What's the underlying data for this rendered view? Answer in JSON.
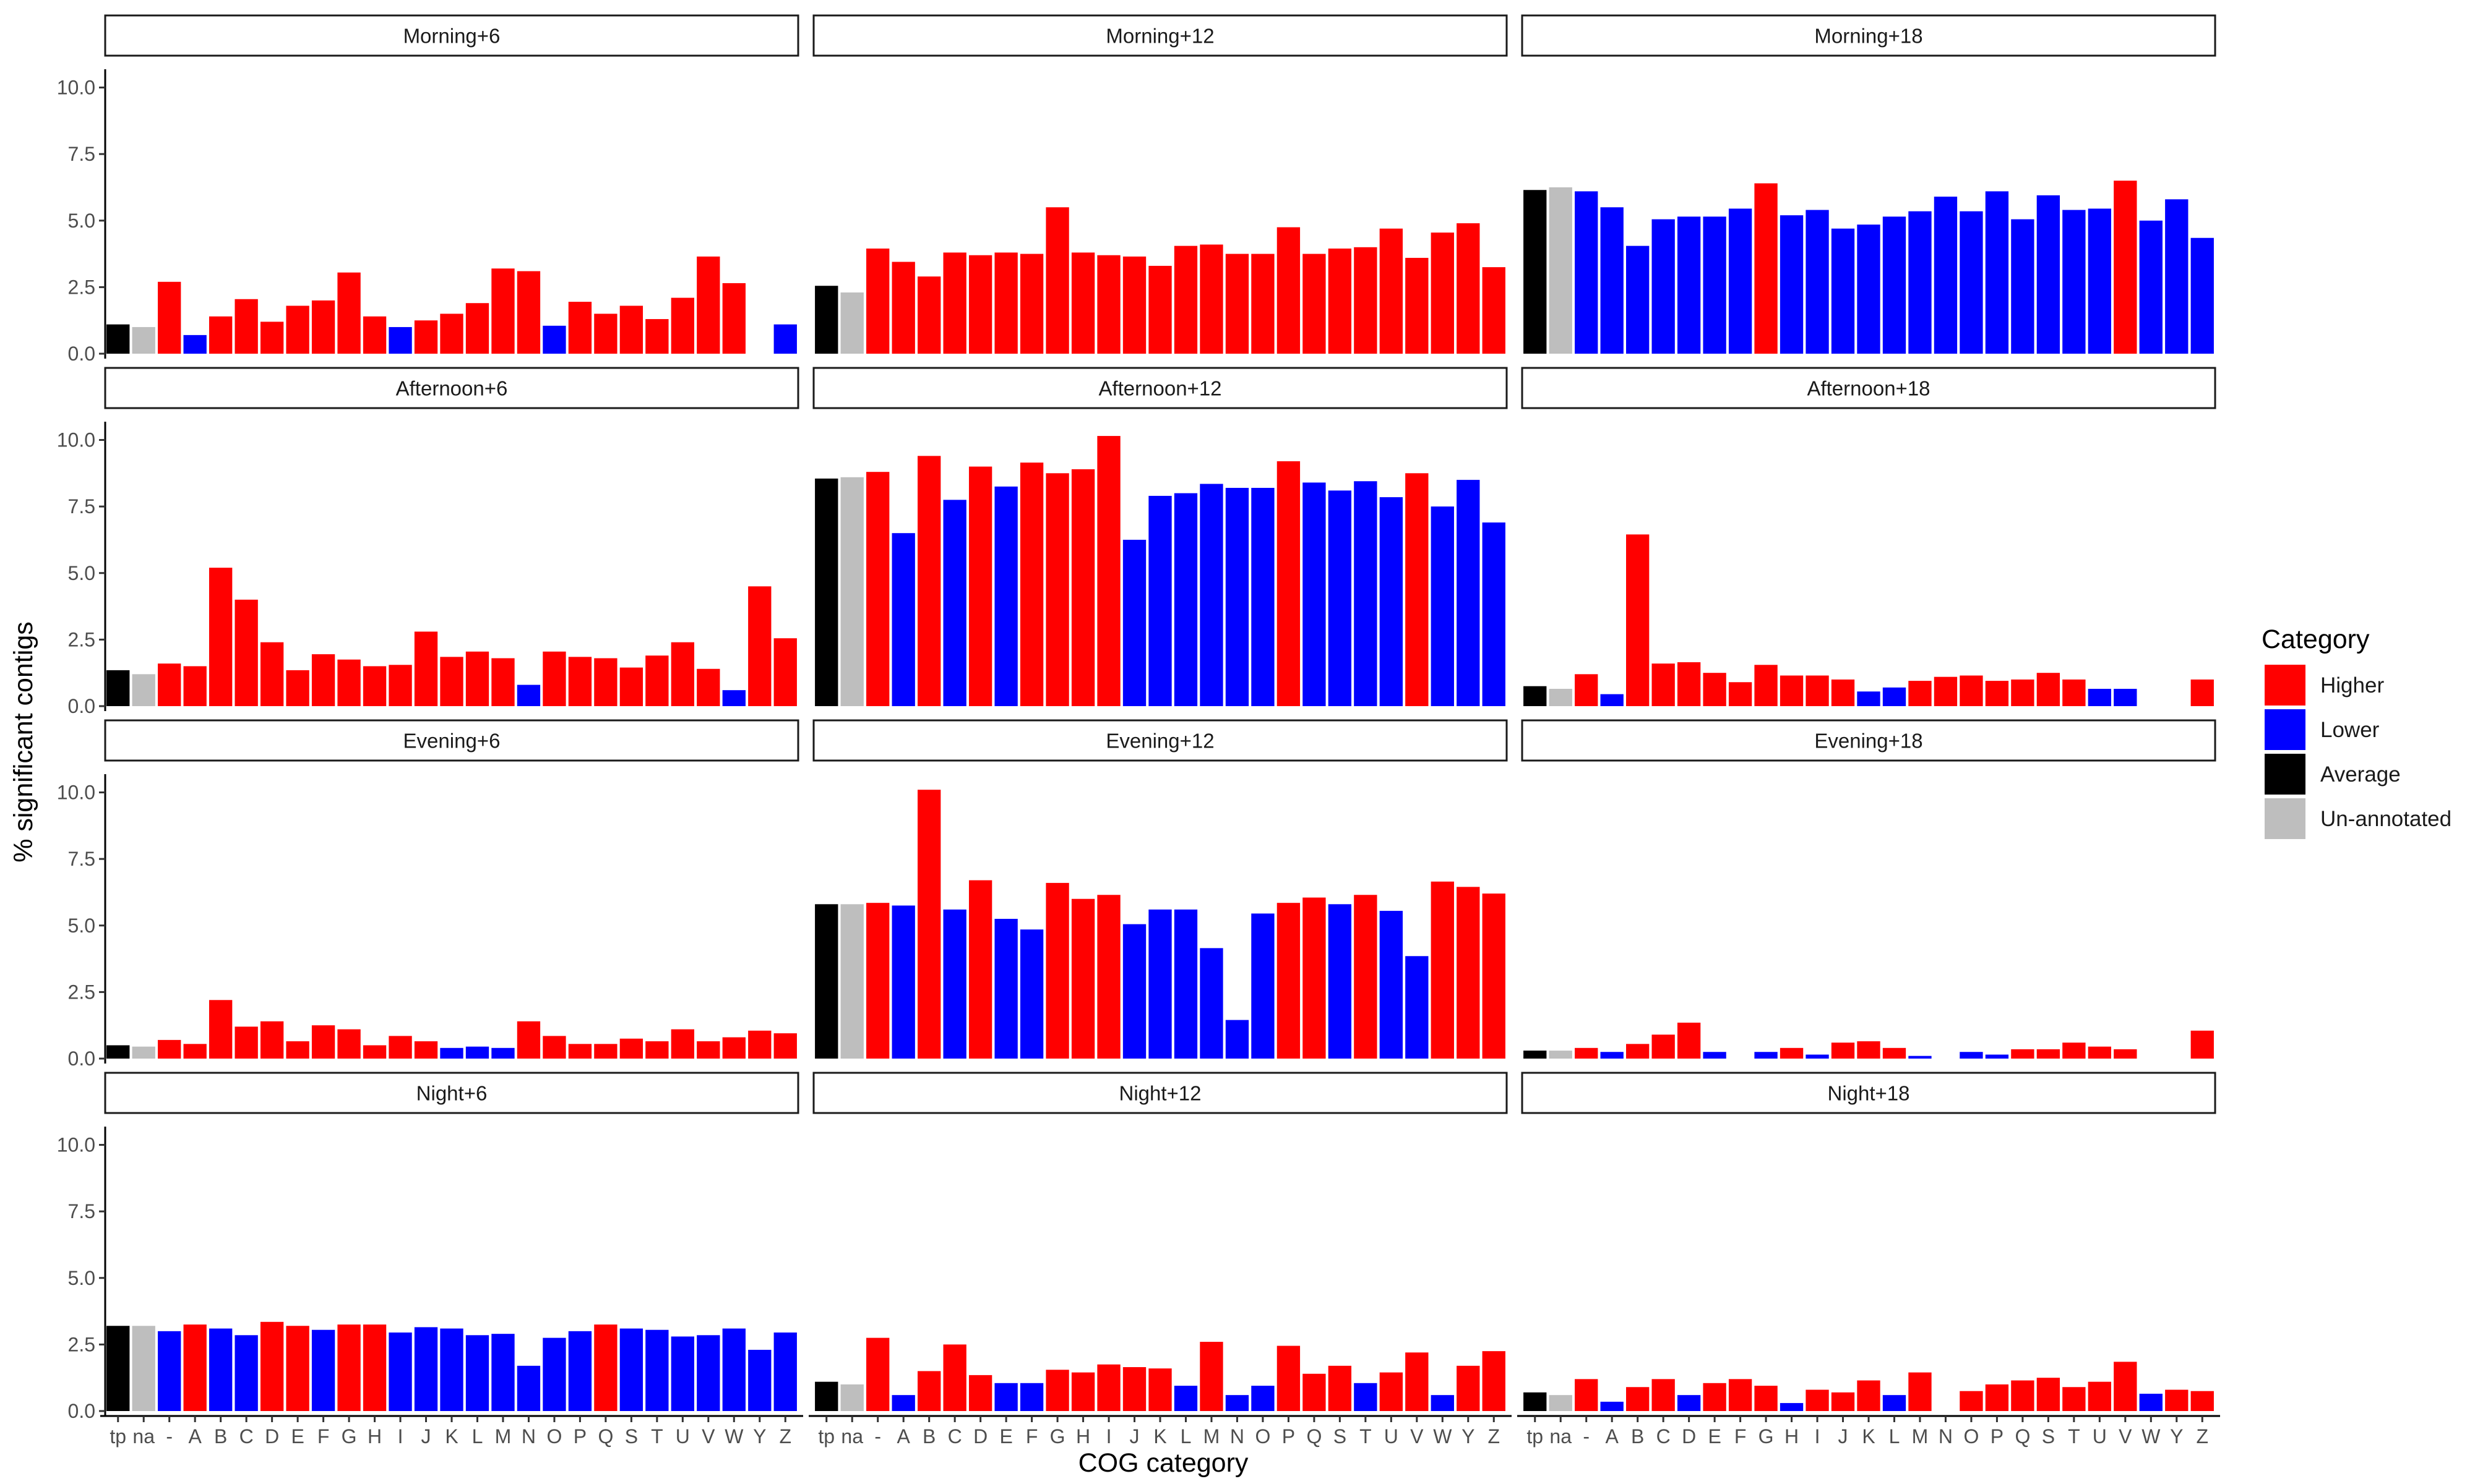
{
  "chart_data": {
    "type": "bar",
    "xlabel": "COG category",
    "ylabel": "% significant contigs",
    "ylim": [
      0,
      10.5
    ],
    "y_ticks": [
      0,
      2.5,
      5,
      7.5,
      10
    ],
    "y_tick_labels": [
      "0.0",
      "2.5",
      "5.0",
      "7.5",
      "10.0"
    ],
    "categories": [
      "tp",
      "na",
      "-",
      "A",
      "B",
      "C",
      "D",
      "E",
      "F",
      "G",
      "H",
      "I",
      "J",
      "K",
      "L",
      "M",
      "N",
      "O",
      "P",
      "Q",
      "S",
      "T",
      "U",
      "V",
      "W",
      "Y",
      "Z"
    ],
    "legend": {
      "title": "Category",
      "position": "right",
      "entries": [
        {
          "label": "Higher",
          "color": "#FF0000"
        },
        {
          "label": "Lower",
          "color": "#0000FF"
        },
        {
          "label": "Average",
          "color": "#000000"
        },
        {
          "label": "Un-annotated",
          "color": "#BEBEBE"
        }
      ]
    },
    "panels": [
      {
        "title": "Morning+6",
        "values": [
          1.1,
          1.0,
          2.7,
          0.7,
          1.4,
          2.05,
          1.2,
          1.8,
          2.0,
          3.05,
          1.4,
          1.0,
          1.25,
          1.5,
          1.9,
          3.2,
          3.1,
          1.05,
          1.95,
          1.5,
          1.8,
          1.3,
          2.1,
          3.65,
          2.65,
          null,
          1.1
        ],
        "groups": [
          "A",
          "U",
          "H",
          "L",
          "H",
          "H",
          "H",
          "H",
          "H",
          "H",
          "H",
          "L",
          "H",
          "H",
          "H",
          "H",
          "H",
          "L",
          "H",
          "H",
          "H",
          "H",
          "H",
          "H",
          "H",
          null,
          "L"
        ]
      },
      {
        "title": "Morning+12",
        "values": [
          2.55,
          2.3,
          3.95,
          3.45,
          2.9,
          3.8,
          3.7,
          3.8,
          3.75,
          5.5,
          3.8,
          3.7,
          3.65,
          3.3,
          4.05,
          4.1,
          3.75,
          3.75,
          4.75,
          3.75,
          3.95,
          4.0,
          4.7,
          3.6,
          4.55,
          4.9,
          3.25
        ],
        "groups": [
          "A",
          "U",
          "H",
          "H",
          "H",
          "H",
          "H",
          "H",
          "H",
          "H",
          "H",
          "H",
          "H",
          "H",
          "H",
          "H",
          "H",
          "H",
          "H",
          "H",
          "H",
          "H",
          "H",
          "H",
          "H",
          "H",
          "H"
        ]
      },
      {
        "title": "Morning+18",
        "values": [
          6.15,
          6.25,
          6.1,
          5.5,
          4.05,
          5.05,
          5.15,
          5.15,
          5.45,
          6.4,
          5.2,
          5.4,
          4.7,
          4.85,
          5.15,
          5.35,
          5.9,
          5.35,
          6.1,
          5.05,
          5.95,
          5.4,
          5.45,
          6.5,
          5.0,
          5.8,
          4.35
        ],
        "groups": [
          "A",
          "U",
          "L",
          "L",
          "L",
          "L",
          "L",
          "L",
          "L",
          "H",
          "L",
          "L",
          "L",
          "L",
          "L",
          "L",
          "L",
          "L",
          "L",
          "L",
          "L",
          "L",
          "L",
          "H",
          "L",
          "L",
          "L"
        ]
      },
      {
        "title": "Afternoon+6",
        "values": [
          1.35,
          1.2,
          1.6,
          1.5,
          5.2,
          4.0,
          2.4,
          1.35,
          1.95,
          1.75,
          1.5,
          1.55,
          2.8,
          1.85,
          2.05,
          1.8,
          0.8,
          2.05,
          1.85,
          1.8,
          1.45,
          1.9,
          2.4,
          1.4,
          0.6,
          4.5,
          2.55
        ],
        "groups": [
          "A",
          "U",
          "H",
          "H",
          "H",
          "H",
          "H",
          "H",
          "H",
          "H",
          "H",
          "H",
          "H",
          "H",
          "H",
          "H",
          "L",
          "H",
          "H",
          "H",
          "H",
          "H",
          "H",
          "H",
          "L",
          "H",
          "H"
        ]
      },
      {
        "title": "Afternoon+12",
        "values": [
          8.55,
          8.6,
          8.8,
          6.5,
          9.4,
          7.75,
          9.0,
          8.25,
          9.15,
          8.75,
          8.9,
          10.15,
          6.25,
          7.9,
          8.0,
          8.35,
          8.2,
          8.2,
          9.2,
          8.4,
          8.1,
          8.45,
          7.85,
          8.75,
          7.5,
          8.5,
          6.9
        ],
        "groups": [
          "A",
          "U",
          "H",
          "L",
          "H",
          "L",
          "H",
          "L",
          "H",
          "H",
          "H",
          "H",
          "L",
          "L",
          "L",
          "L",
          "L",
          "L",
          "H",
          "L",
          "L",
          "L",
          "L",
          "H",
          "L",
          "L",
          "L"
        ]
      },
      {
        "title": "Afternoon+18",
        "values": [
          0.75,
          0.65,
          1.2,
          0.45,
          6.45,
          1.6,
          1.65,
          1.25,
          0.9,
          1.55,
          1.15,
          1.15,
          1.0,
          0.55,
          0.7,
          0.95,
          1.1,
          1.15,
          0.95,
          1.0,
          1.25,
          1.0,
          0.65,
          0.65,
          null,
          null,
          1.0
        ],
        "groups": [
          "A",
          "U",
          "H",
          "L",
          "H",
          "H",
          "H",
          "H",
          "H",
          "H",
          "H",
          "H",
          "H",
          "L",
          "L",
          "H",
          "H",
          "H",
          "H",
          "H",
          "H",
          "H",
          "L",
          "L",
          null,
          null,
          "H"
        ]
      },
      {
        "title": "Evening+6",
        "values": [
          0.5,
          0.45,
          0.7,
          0.55,
          2.2,
          1.2,
          1.4,
          0.65,
          1.25,
          1.1,
          0.5,
          0.85,
          0.65,
          0.4,
          0.45,
          0.4,
          1.4,
          0.85,
          0.55,
          0.55,
          0.75,
          0.65,
          1.1,
          0.65,
          0.8,
          1.05,
          0.95
        ],
        "groups": [
          "A",
          "U",
          "H",
          "H",
          "H",
          "H",
          "H",
          "H",
          "H",
          "H",
          "H",
          "H",
          "H",
          "L",
          "L",
          "L",
          "H",
          "H",
          "H",
          "H",
          "H",
          "H",
          "H",
          "H",
          "H",
          "H",
          "H"
        ]
      },
      {
        "title": "Evening+12",
        "values": [
          5.8,
          5.8,
          5.85,
          5.75,
          10.1,
          5.6,
          6.7,
          5.25,
          4.85,
          6.6,
          6.0,
          6.15,
          5.05,
          5.6,
          5.6,
          4.15,
          1.45,
          5.45,
          5.85,
          6.05,
          5.8,
          6.15,
          5.55,
          3.85,
          6.65,
          6.45,
          6.2
        ],
        "groups": [
          "A",
          "U",
          "H",
          "L",
          "H",
          "L",
          "H",
          "L",
          "L",
          "H",
          "H",
          "H",
          "L",
          "L",
          "L",
          "L",
          "L",
          "L",
          "H",
          "H",
          "L",
          "H",
          "L",
          "L",
          "H",
          "H",
          "H"
        ]
      },
      {
        "title": "Evening+18",
        "values": [
          0.3,
          0.3,
          0.4,
          0.25,
          0.55,
          0.9,
          1.35,
          0.25,
          null,
          0.25,
          0.4,
          0.15,
          0.6,
          0.65,
          0.4,
          0.1,
          null,
          0.25,
          0.15,
          0.35,
          0.35,
          0.6,
          0.45,
          0.35,
          null,
          null,
          1.05
        ],
        "groups": [
          "A",
          "U",
          "H",
          "L",
          "H",
          "H",
          "H",
          "L",
          null,
          "L",
          "H",
          "L",
          "H",
          "H",
          "H",
          "L",
          null,
          "L",
          "L",
          "H",
          "H",
          "H",
          "H",
          "H",
          null,
          null,
          "H"
        ]
      },
      {
        "title": "Night+6",
        "values": [
          3.2,
          3.2,
          3.0,
          3.25,
          3.1,
          2.85,
          3.35,
          3.2,
          3.05,
          3.25,
          3.25,
          2.95,
          3.15,
          3.1,
          2.85,
          2.9,
          1.7,
          2.75,
          3.0,
          3.25,
          3.1,
          3.05,
          2.8,
          2.85,
          3.1,
          2.3,
          2.95
        ],
        "groups": [
          "A",
          "U",
          "L",
          "H",
          "L",
          "L",
          "H",
          "H",
          "L",
          "H",
          "H",
          "L",
          "L",
          "L",
          "L",
          "L",
          "L",
          "L",
          "L",
          "H",
          "L",
          "L",
          "L",
          "L",
          "L",
          "L",
          "L"
        ]
      },
      {
        "title": "Night+12",
        "values": [
          1.1,
          1.0,
          2.75,
          0.6,
          1.5,
          2.5,
          1.35,
          1.05,
          1.05,
          1.55,
          1.45,
          1.75,
          1.65,
          1.6,
          0.95,
          2.6,
          0.6,
          0.95,
          2.45,
          1.4,
          1.7,
          1.05,
          1.45,
          2.2,
          0.6,
          1.7,
          2.25
        ],
        "groups": [
          "A",
          "U",
          "H",
          "L",
          "H",
          "H",
          "H",
          "L",
          "L",
          "H",
          "H",
          "H",
          "H",
          "H",
          "L",
          "H",
          "L",
          "L",
          "H",
          "H",
          "H",
          "L",
          "H",
          "H",
          "L",
          "H",
          "H"
        ]
      },
      {
        "title": "Night+18",
        "values": [
          0.7,
          0.6,
          1.2,
          0.35,
          0.9,
          1.2,
          0.6,
          1.05,
          1.2,
          0.95,
          0.3,
          0.8,
          0.7,
          1.15,
          0.6,
          1.45,
          null,
          0.75,
          1.0,
          1.15,
          1.25,
          0.9,
          1.1,
          1.85,
          0.65,
          0.8,
          0.75
        ],
        "groups": [
          "A",
          "U",
          "H",
          "L",
          "H",
          "H",
          "L",
          "H",
          "H",
          "H",
          "L",
          "H",
          "H",
          "H",
          "L",
          "H",
          null,
          "H",
          "H",
          "H",
          "H",
          "H",
          "H",
          "H",
          "L",
          "H",
          "H"
        ]
      }
    ]
  }
}
